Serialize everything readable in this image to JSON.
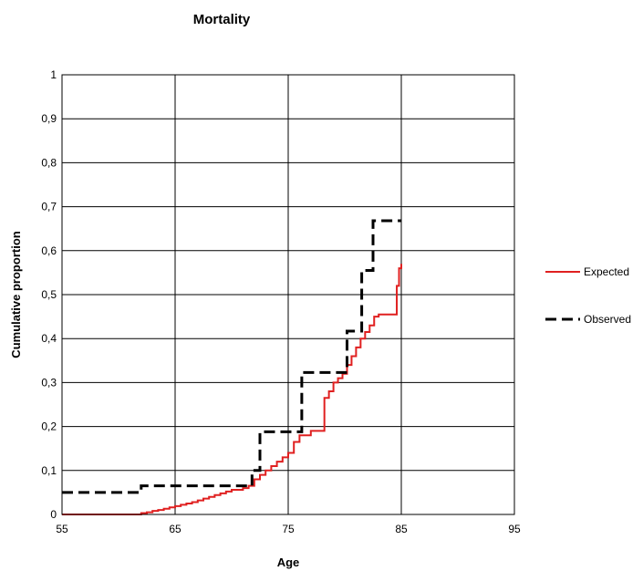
{
  "chart_data": {
    "type": "line",
    "title": "Mortality",
    "xlabel": "Age",
    "ylabel": "Cumulative proportion",
    "xlim": [
      55,
      95
    ],
    "ylim": [
      0,
      1
    ],
    "x_ticks": [
      55,
      65,
      75,
      85,
      95
    ],
    "x_tick_labels": [
      "55",
      "65",
      "75",
      "85",
      "95"
    ],
    "y_ticks": [
      0,
      0.1,
      0.2,
      0.3,
      0.4,
      0.5,
      0.6,
      0.7,
      0.8,
      0.9,
      1
    ],
    "y_tick_labels": [
      "0",
      "0,1",
      "0,2",
      "0,3",
      "0,4",
      "0,5",
      "0,6",
      "0,7",
      "0,8",
      "0,9",
      "1"
    ],
    "grid": true,
    "legend": "right",
    "series": [
      {
        "name": "Expected",
        "color": "#e02020",
        "style": "solid",
        "step": true,
        "x": [
          55,
          62,
          62.5,
          63,
          63.5,
          64,
          64.5,
          65,
          65.5,
          66,
          66.5,
          67,
          67.5,
          68,
          68.5,
          69,
          69.5,
          70,
          71,
          71.5,
          72,
          72.5,
          73,
          73.5,
          74,
          74.5,
          75,
          75.5,
          76,
          77,
          78.2,
          78.6,
          79,
          79.4,
          79.8,
          80.2,
          80.6,
          81,
          81.4,
          81.8,
          82.2,
          82.6,
          83,
          84,
          84.6,
          84.8,
          85
        ],
        "y": [
          0,
          0.003,
          0.005,
          0.008,
          0.01,
          0.013,
          0.016,
          0.019,
          0.022,
          0.025,
          0.028,
          0.032,
          0.036,
          0.04,
          0.044,
          0.048,
          0.052,
          0.056,
          0.06,
          0.065,
          0.08,
          0.09,
          0.1,
          0.11,
          0.12,
          0.13,
          0.14,
          0.165,
          0.18,
          0.19,
          0.265,
          0.28,
          0.3,
          0.31,
          0.32,
          0.34,
          0.36,
          0.38,
          0.4,
          0.415,
          0.43,
          0.45,
          0.455,
          0.455,
          0.52,
          0.56,
          0.57
        ]
      },
      {
        "name": "Observed",
        "color": "#000000",
        "style": "dashed",
        "step": true,
        "x": [
          55,
          62,
          71.8,
          72.5,
          76.2,
          79.5,
          80.2,
          81.5,
          82.5,
          85
        ],
        "y": [
          0.05,
          0.065,
          0.1,
          0.188,
          0.323,
          0.323,
          0.417,
          0.555,
          0.668,
          0.668
        ]
      }
    ]
  }
}
